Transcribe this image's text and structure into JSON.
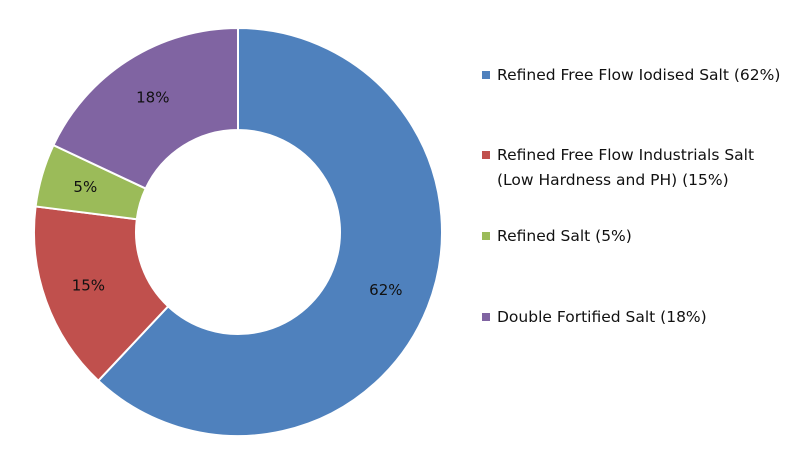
{
  "chart_data": {
    "type": "pie",
    "donut": true,
    "slices": [
      {
        "label": "Refined Free Flow Iodised Salt",
        "value": 62,
        "data_label": "62%",
        "color": "#4f81bd",
        "legend_lines": [
          "Refined Free Flow Iodised Salt (62%)"
        ]
      },
      {
        "label": "Refined  Free Flow Industrials Salt (Low Hardness and PH)",
        "value": 15,
        "data_label": "15%",
        "color": "#c0504d",
        "legend_lines": [
          "Refined  Free Flow Industrials Salt",
          "(Low Hardness and PH) (15%)"
        ]
      },
      {
        "label": "Refined Salt",
        "value": 5,
        "data_label": "5%",
        "color": "#9bbb59",
        "legend_lines": [
          "Refined Salt (5%)"
        ]
      },
      {
        "label": "Double Fortified Salt",
        "value": 18,
        "data_label": "18%",
        "color": "#8064a2",
        "legend_lines": [
          "Double Fortified Salt (18%)"
        ]
      }
    ],
    "start": "12 o'clock",
    "direction": "clockwise",
    "legend_position": "right",
    "title": ""
  }
}
